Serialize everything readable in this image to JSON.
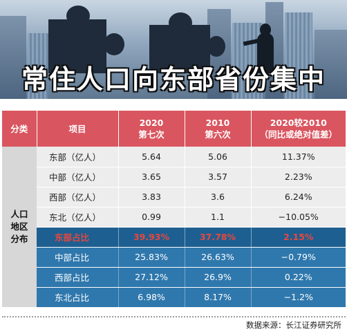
{
  "banner": {
    "title": "常住人口向东部省份集中"
  },
  "table": {
    "headers": [
      "分类",
      "项目",
      "2020\n第七次",
      "2010\n第六次",
      "2020较2010\n（同比或绝对值差）"
    ],
    "category": "人口\n地区\n分布",
    "rows": [
      {
        "item": "东部（亿人）",
        "y2020": "5.64",
        "y2010": "5.06",
        "diff": "11.37%",
        "style": "light"
      },
      {
        "item": "中部（亿人）",
        "y2020": "3.65",
        "y2010": "3.57",
        "diff": "2.23%",
        "style": "light"
      },
      {
        "item": "西部（亿人）",
        "y2020": "3.83",
        "y2010": "3.6",
        "diff": "6.24%",
        "style": "light"
      },
      {
        "item": "东北（亿人）",
        "y2020": "0.99",
        "y2010": "1.1",
        "diff": "−10.05%",
        "style": "light"
      },
      {
        "item": "东部占比",
        "y2020": "39.93%",
        "y2010": "37.78%",
        "diff": "2.15%",
        "style": "highlight"
      },
      {
        "item": "中部占比",
        "y2020": "25.83%",
        "y2010": "26.63%",
        "diff": "−0.79%",
        "style": "blue"
      },
      {
        "item": "西部占比",
        "y2020": "27.12%",
        "y2010": "26.9%",
        "diff": "0.22%",
        "style": "blue"
      },
      {
        "item": "东北占比",
        "y2020": "6.98%",
        "y2010": "8.17%",
        "diff": "−1.2%",
        "style": "blue"
      }
    ]
  },
  "source": "数据来源：长江证券研究所",
  "colors": {
    "header": "#d9555f",
    "highlight_text": "#e8473d",
    "blue_row": "#2f78ad",
    "light_row": "#ededed"
  }
}
